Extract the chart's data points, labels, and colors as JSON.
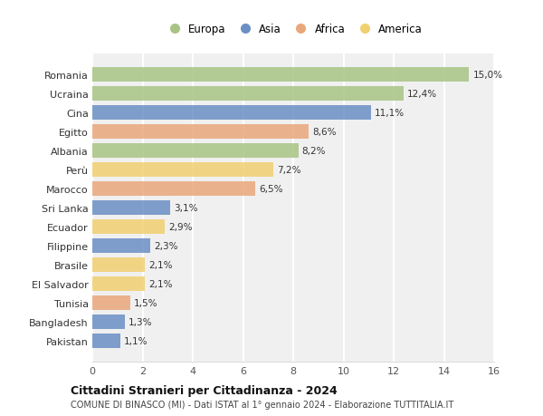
{
  "countries": [
    "Romania",
    "Ucraina",
    "Cina",
    "Egitto",
    "Albania",
    "Perù",
    "Marocco",
    "Sri Lanka",
    "Ecuador",
    "Filippine",
    "Brasile",
    "El Salvador",
    "Tunisia",
    "Bangladesh",
    "Pakistan"
  ],
  "values": [
    15.0,
    12.4,
    11.1,
    8.6,
    8.2,
    7.2,
    6.5,
    3.1,
    2.9,
    2.3,
    2.1,
    2.1,
    1.5,
    1.3,
    1.1
  ],
  "labels": [
    "15,0%",
    "12,4%",
    "11,1%",
    "8,6%",
    "8,2%",
    "7,2%",
    "6,5%",
    "3,1%",
    "2,9%",
    "2,3%",
    "2,1%",
    "2,1%",
    "1,5%",
    "1,3%",
    "1,1%"
  ],
  "categories": [
    "Europa",
    "Europa",
    "Asia",
    "Africa",
    "Europa",
    "America",
    "Africa",
    "Asia",
    "America",
    "Asia",
    "America",
    "America",
    "Africa",
    "Asia",
    "Asia"
  ],
  "category_colors": {
    "Europa": "#a8c484",
    "Asia": "#6b8fc4",
    "Africa": "#e8a87c",
    "America": "#f0d070"
  },
  "legend_order": [
    "Europa",
    "Asia",
    "Africa",
    "America"
  ],
  "title": "Cittadini Stranieri per Cittadinanza - 2024",
  "subtitle": "COMUNE DI BINASCO (MI) - Dati ISTAT al 1° gennaio 2024 - Elaborazione TUTTITALIA.IT",
  "xlim": [
    0,
    16
  ],
  "xticks": [
    0,
    2,
    4,
    6,
    8,
    10,
    12,
    14,
    16
  ],
  "bg_color": "#ffffff",
  "plot_bg_color": "#f0f0f0",
  "grid_color": "#ffffff",
  "bar_height": 0.75
}
